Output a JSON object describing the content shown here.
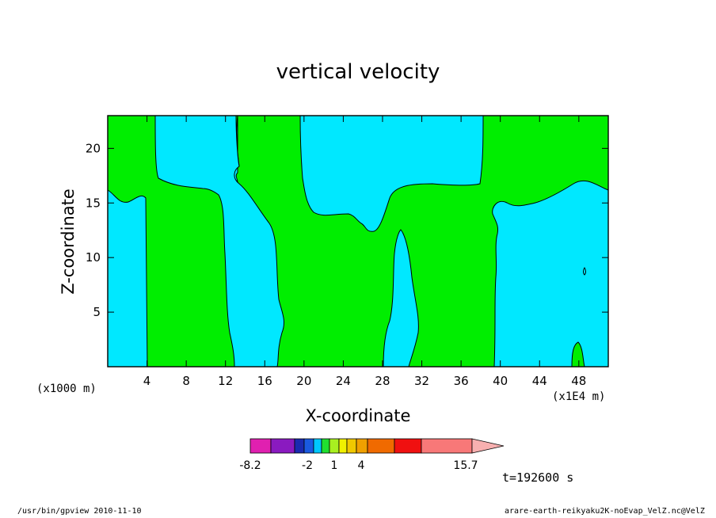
{
  "chart_data": {
    "type": "heatmap",
    "title": "vertical velocity",
    "xlabel": "X-coordinate",
    "ylabel": "Z-coordinate",
    "x_scale_note": "(x1E4 m)",
    "y_scale_note": "(x1000 m)",
    "xlim": [
      0,
      51
    ],
    "ylim": [
      0,
      23
    ],
    "x_ticks": [
      4,
      8,
      12,
      16,
      20,
      24,
      28,
      32,
      36,
      40,
      44,
      48
    ],
    "y_ticks": [
      5,
      10,
      15,
      20
    ],
    "colorbar": {
      "labels": [
        "-8.2",
        "-2",
        "1",
        "4",
        "15.7"
      ],
      "colors": [
        "#e020b0",
        "#8a1ac0",
        "#1a2ab0",
        "#1a5ae0",
        "#00c8ff",
        "#20e030",
        "#a8f020",
        "#f0f000",
        "#f0c800",
        "#f0a000",
        "#f06a00",
        "#f01010",
        "#f87878",
        "#f8b0b0"
      ]
    },
    "regions": [
      {
        "level": "-2 to 1",
        "color": "#00e8ff"
      },
      {
        "level": "1 to 4",
        "color": "#00ee00"
      }
    ],
    "time_label": "t=192600 s"
  },
  "footer": {
    "left": "/usr/bin/gpview  2010-11-10",
    "right": "arare-earth-reikyaku2K-noEvap_VelZ.nc@VelZ"
  }
}
